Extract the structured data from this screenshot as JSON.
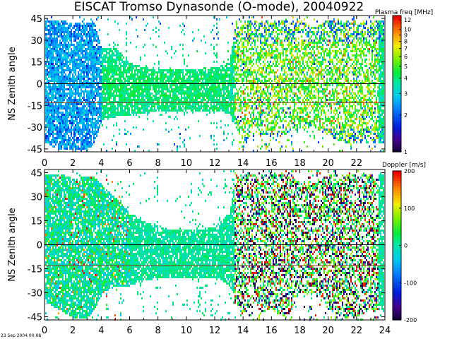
{
  "title": "EISCAT Tromso Dynasonde (O-mode),  20040922",
  "footer_timestamp": "23 Sep 2004 00:08",
  "chart_data": [
    {
      "type": "heatmap",
      "ylabel": "NS Zenith angle",
      "xlabel": "",
      "xlim": [
        0,
        24
      ],
      "ylim": [
        -47,
        47
      ],
      "x_ticks": [
        "0",
        "2",
        "4",
        "6",
        "8",
        "10",
        "12",
        "14",
        "16",
        "18",
        "20",
        "22"
      ],
      "y_ticks": [
        "45",
        "30",
        "15",
        "0",
        "-15",
        "-30",
        "-45"
      ],
      "x_tick_values": [
        0,
        2,
        4,
        6,
        8,
        10,
        12,
        14,
        16,
        18,
        20,
        22
      ],
      "y_tick_values": [
        45,
        30,
        15,
        0,
        -15,
        -30,
        -45
      ],
      "reference_lines": [
        0,
        -13
      ],
      "colorbar": {
        "label": "Plasma freq [MHz]",
        "scale": "log",
        "ticks": [
          "12",
          "10",
          "9",
          "8",
          "7",
          "6",
          "5",
          "4",
          "3",
          "2",
          "1"
        ],
        "tick_values": [
          12,
          10,
          9,
          8,
          7,
          6,
          5,
          4,
          3,
          2,
          1
        ],
        "range": [
          1,
          13
        ]
      },
      "activity_profile": {
        "x": [
          0,
          1,
          2,
          3,
          3.5,
          4,
          5,
          6,
          7,
          8,
          9,
          10,
          11,
          12,
          13,
          13.5,
          14,
          14.5,
          15,
          16,
          17,
          18,
          19,
          20,
          21,
          22,
          23,
          24
        ],
        "extent_top": [
          45,
          45,
          42,
          43,
          43,
          25,
          25,
          15,
          12,
          10,
          10,
          10,
          10,
          12,
          15,
          45,
          45,
          45,
          45,
          45,
          45,
          45,
          40,
          45,
          45,
          45,
          45,
          45
        ],
        "extent_bottom": [
          -40,
          -45,
          -45,
          -45,
          -40,
          -25,
          -22,
          -22,
          -20,
          -18,
          -18,
          -18,
          -18,
          -18,
          -20,
          -30,
          -40,
          -35,
          -35,
          -35,
          -35,
          -30,
          -30,
          -35,
          -40,
          -40,
          -40,
          -40
        ]
      }
    },
    {
      "type": "heatmap",
      "ylabel": "NS Zenith angle",
      "xlabel": "",
      "xlim": [
        0,
        24
      ],
      "ylim": [
        -47,
        47
      ],
      "x_ticks": [
        "0",
        "2",
        "4",
        "6",
        "8",
        "10",
        "12",
        "14",
        "16",
        "18",
        "20",
        "22",
        "24"
      ],
      "y_ticks": [
        "45",
        "30",
        "15",
        "0",
        "-15",
        "-30",
        "-45"
      ],
      "x_tick_values": [
        0,
        2,
        4,
        6,
        8,
        10,
        12,
        14,
        16,
        18,
        20,
        22,
        24
      ],
      "y_tick_values": [
        45,
        30,
        15,
        0,
        -15,
        -30,
        -45
      ],
      "reference_lines": [
        0,
        -13
      ],
      "colorbar": {
        "label": "Doppler [m/s]",
        "scale": "linear",
        "ticks": [
          "200",
          "100",
          "0",
          "-100",
          "-200"
        ],
        "tick_values": [
          200,
          100,
          0,
          -100,
          -200
        ],
        "range": [
          -200,
          200
        ]
      },
      "activity_profile": {
        "x": [
          0,
          1,
          2,
          3,
          3.5,
          4,
          5,
          6,
          7,
          8,
          9,
          10,
          11,
          12,
          13,
          13.5,
          14,
          14.5,
          15,
          16,
          17,
          18,
          19,
          20,
          21,
          22,
          23,
          24
        ],
        "extent_top": [
          45,
          45,
          42,
          43,
          43,
          38,
          30,
          20,
          15,
          12,
          10,
          10,
          10,
          12,
          20,
          45,
          45,
          45,
          45,
          45,
          45,
          40,
          40,
          45,
          45,
          45,
          45,
          45
        ],
        "extent_bottom": [
          -35,
          -40,
          -45,
          -45,
          -40,
          -30,
          -25,
          -25,
          -22,
          -20,
          -20,
          -20,
          -20,
          -20,
          -25,
          -35,
          -45,
          -35,
          -40,
          -40,
          -45,
          -30,
          -30,
          -40,
          -45,
          -45,
          -40,
          -40
        ]
      }
    }
  ]
}
